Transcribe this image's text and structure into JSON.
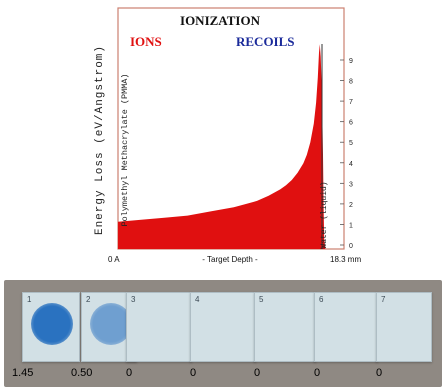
{
  "chart_data": {
    "type": "area",
    "title": "IONIZATION",
    "ylabel": "Energy Loss (eV/Angstrom)",
    "xlabel": "- Target Depth -",
    "x_start_label": "0 A",
    "x_end_label": "18.3 mm",
    "series": [
      {
        "name": "IONS",
        "color": "#e01010"
      },
      {
        "name": "RECOILS",
        "color": "#1a2a9a"
      }
    ],
    "layer_labels": [
      "Polymethyl Methacrylate (PMMA)",
      "Water (liquid)"
    ],
    "right_axis_ticks": [
      "9",
      "8",
      "7",
      "6",
      "5",
      "4",
      "3",
      "2",
      "1",
      "0"
    ],
    "ylim": [
      0,
      10
    ],
    "xlim": [
      0,
      18.3
    ],
    "x": [
      0,
      2,
      4,
      6,
      8,
      10,
      11,
      12,
      13,
      14,
      14.5,
      15,
      15.5,
      16,
      16.3,
      16.6,
      16.9,
      17.1,
      17.25,
      17.35,
      17.42,
      17.5,
      17.6,
      17.7,
      17.75,
      17.8,
      17.9
    ],
    "values": [
      1.3,
      1.4,
      1.5,
      1.6,
      1.8,
      2.0,
      2.15,
      2.3,
      2.55,
      2.85,
      3.05,
      3.3,
      3.65,
      4.1,
      4.5,
      5.1,
      6.0,
      7.0,
      8.2,
      9.4,
      9.8,
      9.2,
      7.5,
      4.5,
      2.0,
      0.5,
      0
    ]
  },
  "photo": {
    "background_color": "#8f8983",
    "slides": [
      {
        "index": "1",
        "dose": "1.45",
        "spot_color": "#2a72c0"
      },
      {
        "index": "2",
        "dose": "0.50",
        "spot_color": "#6f9fd0"
      },
      {
        "index": "3",
        "dose": "0",
        "spot_color": ""
      },
      {
        "index": "4",
        "dose": "0",
        "spot_color": ""
      },
      {
        "index": "5",
        "dose": "0",
        "spot_color": ""
      },
      {
        "index": "6",
        "dose": "0",
        "spot_color": ""
      },
      {
        "index": "7",
        "dose": "0",
        "spot_color": ""
      }
    ]
  }
}
